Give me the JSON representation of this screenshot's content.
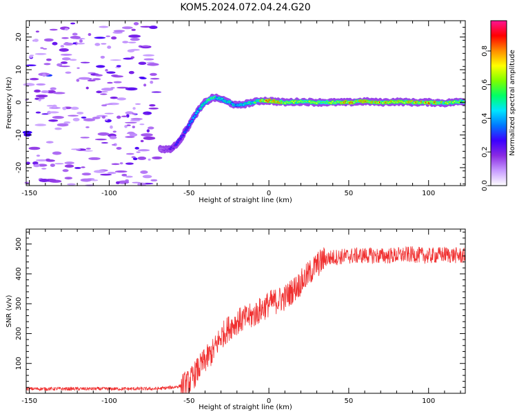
{
  "title": "KOM5.2024.072.04.24.G20",
  "colors": {
    "line": "#f03030",
    "axis": "#000000",
    "background": "#ffffff",
    "colormap": [
      "#ffffff",
      "#c79bff",
      "#8a2be2",
      "#3c00ff",
      "#0077ff",
      "#00e5ff",
      "#00ff66",
      "#7fff00",
      "#ffff00",
      "#ff8c00",
      "#ff0000",
      "#ff1493"
    ]
  },
  "chart_data": [
    {
      "type": "heatmap",
      "xlabel": "Height of straight line (km)",
      "ylabel": "Frequency (Hz)",
      "xlim": [
        -152,
        123
      ],
      "ylim": [
        -25.5,
        25
      ],
      "xticks": [
        -150,
        -100,
        -50,
        0,
        50,
        100
      ],
      "yticks": [
        -20,
        -10,
        0,
        10,
        20
      ],
      "colorbar": {
        "label": "Normalized spectral amplitude",
        "ticks": [
          "0.0",
          "0.2",
          "0.4",
          "0.6",
          "0.8"
        ],
        "range": [
          0,
          0.98
        ]
      },
      "ridge": {
        "x": [
          -70,
          -65,
          -60,
          -55,
          -50,
          -45,
          -40,
          -35,
          -30,
          -25,
          -20,
          -15,
          -10,
          -5,
          0,
          10,
          20,
          30,
          40,
          50,
          60,
          70,
          80,
          90,
          100,
          110,
          122
        ],
        "frequency": [
          -14,
          -14.5,
          -14,
          -11,
          -7,
          -3,
          0,
          1.5,
          1,
          0,
          -1,
          -0.5,
          0,
          0.5,
          0.5,
          0,
          0.2,
          0,
          0,
          0,
          0.3,
          0,
          0.2,
          0,
          0,
          -0.2,
          0.3
        ],
        "amplitude": [
          0.15,
          0.2,
          0.25,
          0.3,
          0.35,
          0.45,
          0.55,
          0.6,
          0.45,
          0.5,
          0.5,
          0.55,
          0.55,
          0.7,
          0.85,
          0.7,
          0.65,
          0.7,
          0.75,
          0.8,
          0.75,
          0.8,
          0.7,
          0.75,
          0.8,
          0.7,
          0.6
        ]
      },
      "noise_region_x": [
        -152,
        -70
      ]
    },
    {
      "type": "line",
      "xlabel": "Height of straight line (km)",
      "ylabel": "SNR (v/v)",
      "xlim": [
        -152,
        123
      ],
      "ylim": [
        0,
        550
      ],
      "xticks": [
        -150,
        -100,
        -50,
        0,
        50,
        100
      ],
      "yticks": [
        100,
        200,
        300,
        400,
        500
      ],
      "series": [
        {
          "x": [
            -152,
            -130,
            -110,
            -90,
            -70,
            -60,
            -55,
            -50,
            -45,
            -40,
            -35,
            -30,
            -25,
            -20,
            -15,
            -10,
            -5,
            0,
            5,
            10,
            15,
            20,
            25,
            30,
            35,
            40,
            50,
            60,
            70,
            80,
            90,
            100,
            110,
            122
          ],
          "y": [
            15,
            15,
            15,
            15,
            15,
            20,
            25,
            35,
            75,
            110,
            140,
            190,
            220,
            240,
            250,
            260,
            280,
            300,
            310,
            320,
            345,
            370,
            400,
            430,
            450,
            455,
            460,
            462,
            460,
            462,
            465,
            460,
            465,
            460
          ]
        }
      ]
    }
  ]
}
